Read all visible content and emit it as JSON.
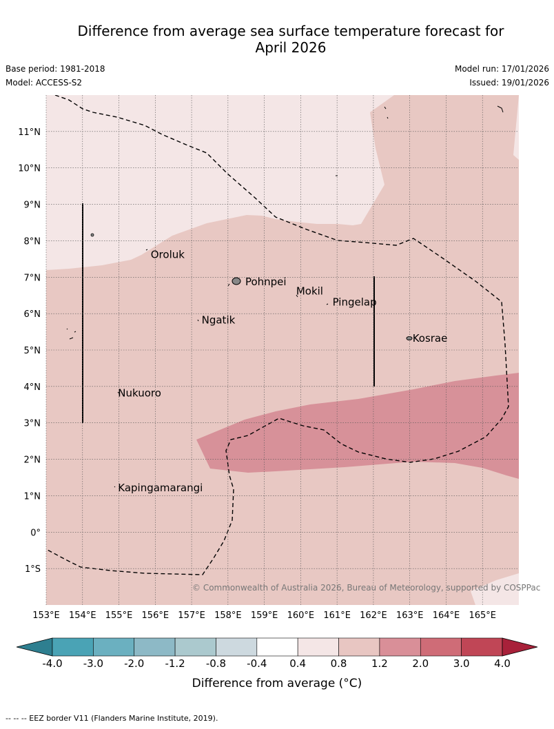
{
  "title_line1": "Difference from average sea surface temperature forecast for",
  "title_line2": "April 2026",
  "base_period": "Base period: 1981-2018",
  "model": "Model: ACCESS-S2",
  "model_run": "Model run: 17/01/2026",
  "issued": "Issued: 19/01/2026",
  "credit": "© Commonwealth of Australia 2026, Bureau of Meteorology, supported by COSPPac",
  "footer": "-- -- -- EEZ border V11 (Flanders Marine Institute, 2019).",
  "map": {
    "lon_min": 153,
    "lon_max": 166,
    "lat_min": -2,
    "lat_max": 12,
    "lon_ticks": [
      "153°E",
      "154°E",
      "155°E",
      "156°E",
      "157°E",
      "158°E",
      "159°E",
      "160°E",
      "161°E",
      "162°E",
      "163°E",
      "164°E",
      "165°E"
    ],
    "lat_ticks": [
      "11°N",
      "10°N",
      "9°N",
      "8°N",
      "7°N",
      "6°N",
      "5°N",
      "4°N",
      "3°N",
      "2°N",
      "1°N",
      "0°",
      "1°S"
    ],
    "places": [
      {
        "name": "Oroluk",
        "lon": 155.8,
        "lat": 7.6
      },
      {
        "name": "Pohnpei",
        "lon": 158.4,
        "lat": 6.85
      },
      {
        "name": "Mokil",
        "lon": 159.8,
        "lat": 6.6
      },
      {
        "name": "Pingelap",
        "lon": 160.8,
        "lat": 6.3
      },
      {
        "name": "Ngatik",
        "lon": 157.2,
        "lat": 5.8
      },
      {
        "name": "Kosrae",
        "lon": 163.0,
        "lat": 5.3
      },
      {
        "name": "Nukuoro",
        "lon": 154.9,
        "lat": 3.8
      },
      {
        "name": "Kapingamarangi",
        "lon": 154.9,
        "lat": 1.2
      }
    ]
  },
  "colorbar": {
    "title": "Difference from average (°C)",
    "ticks": [
      "-4.0",
      "-3.0",
      "-2.0",
      "-1.2",
      "-0.8",
      "-0.4",
      "0.4",
      "0.8",
      "1.2",
      "2.0",
      "3.0",
      "4.0"
    ],
    "colors": [
      "#4aa3b5",
      "#6bb0c0",
      "#8db9c6",
      "#abc9ce",
      "#cdd9df",
      "#ffffff",
      "#f4e6e6",
      "#e8c6c2",
      "#d98f98",
      "#cf6c77",
      "#c04656"
    ],
    "under_color": "#2e7f90",
    "over_color": "#a8213a"
  }
}
